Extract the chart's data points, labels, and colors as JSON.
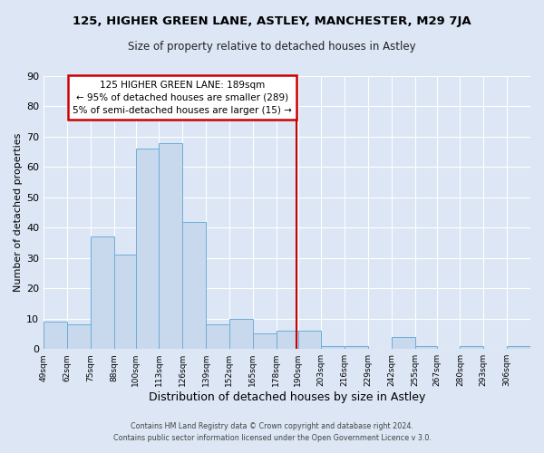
{
  "title": "125, HIGHER GREEN LANE, ASTLEY, MANCHESTER, M29 7JA",
  "subtitle": "Size of property relative to detached houses in Astley",
  "xlabel": "Distribution of detached houses by size in Astley",
  "ylabel": "Number of detached properties",
  "bin_labels": [
    "49sqm",
    "62sqm",
    "75sqm",
    "88sqm",
    "100sqm",
    "113sqm",
    "126sqm",
    "139sqm",
    "152sqm",
    "165sqm",
    "178sqm",
    "190sqm",
    "203sqm",
    "216sqm",
    "229sqm",
    "242sqm",
    "255sqm",
    "267sqm",
    "280sqm",
    "293sqm",
    "306sqm"
  ],
  "bin_edges": [
    49,
    62,
    75,
    88,
    100,
    113,
    126,
    139,
    152,
    165,
    178,
    190,
    203,
    216,
    229,
    242,
    255,
    267,
    280,
    293,
    306
  ],
  "counts": [
    9,
    8,
    37,
    31,
    66,
    68,
    42,
    8,
    10,
    5,
    6,
    6,
    1,
    1,
    0,
    4,
    1,
    0,
    1,
    0,
    1
  ],
  "bar_facecolor": "#c9d9ed",
  "bar_edgecolor": "#6baed6",
  "fig_facecolor": "#dce6f5",
  "ax_facecolor": "#dce6f5",
  "grid_color": "#ffffff",
  "vline_x": 189,
  "vline_color": "#cc0000",
  "annotation_line1": "125 HIGHER GREEN LANE: 189sqm",
  "annotation_line2": "← 95% of detached houses are smaller (289)",
  "annotation_line3": "5% of semi-detached houses are larger (15) →",
  "annotation_box_edgecolor": "#cc0000",
  "footer_line1": "Contains HM Land Registry data © Crown copyright and database right 2024.",
  "footer_line2": "Contains public sector information licensed under the Open Government Licence v 3.0.",
  "ylim": [
    0,
    90
  ],
  "yticks": [
    0,
    10,
    20,
    30,
    40,
    50,
    60,
    70,
    80,
    90
  ]
}
